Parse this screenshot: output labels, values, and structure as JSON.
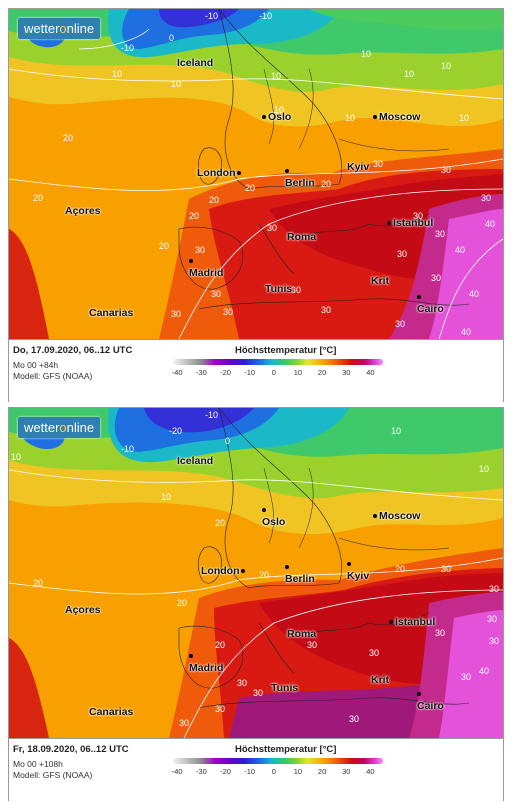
{
  "logo": {
    "pre": "wetter",
    "o": "o",
    "post": "nline"
  },
  "panels": [
    {
      "footer": {
        "date": "Do, 17.09.2020, 06..12 UTC",
        "run": "Mo 00 +84h",
        "model": "Modell: GFS (NOAA)",
        "legend_title": "Höchsttemperatur [°C]"
      },
      "cities": {
        "iceland": "Iceland",
        "oslo": "Oslo",
        "moscow": "Moscow",
        "london": "London",
        "berlin": "Berlin",
        "kyiv": "Kyiv",
        "acores": "Açores",
        "istanbul": "Istanbul",
        "roma": "Roma",
        "madrid": "Madrid",
        "tunis": "Tunis",
        "krit": "Krit",
        "cairo": "Cairo",
        "canarias": "Canarias"
      }
    },
    {
      "footer": {
        "date": "Fr, 18.09.2020, 06..12 UTC",
        "run": "Mo 00 +108h",
        "model": "Modell: GFS (NOAA)",
        "legend_title": "Höchsttemperatur [°C]"
      },
      "cities": {
        "iceland": "Iceland",
        "oslo": "Oslo",
        "moscow": "Moscow",
        "london": "London",
        "berlin": "Berlin",
        "kyiv": "Kyiv",
        "acores": "Açores",
        "istanbul": "Istanbul",
        "roma": "Roma",
        "madrid": "Madrid",
        "tunis": "Tunis",
        "krit": "Krit",
        "cairo": "Cairo",
        "canarias": "Canarias"
      }
    }
  ],
  "legend_ticks": [
    "-40",
    "-30",
    "-20",
    "-10",
    "0",
    "10",
    "20",
    "30",
    "40"
  ],
  "isotherm_labels": {
    "p1": [
      "-10",
      "-10",
      "0",
      "-10",
      "10",
      "10",
      "10",
      "10",
      "10",
      "10",
      "10",
      "10",
      "10",
      "20",
      "20",
      "20",
      "20",
      "20",
      "30",
      "20",
      "30",
      "30",
      "30",
      "30",
      "30",
      "30",
      "40",
      "30",
      "40",
      "30",
      "40",
      "40",
      "20",
      "30",
      "30",
      "30",
      "30",
      "30",
      "30"
    ],
    "p2": [
      "-10",
      "-20",
      "0",
      "-10",
      "10",
      "10",
      "10",
      "10",
      "20",
      "20",
      "20",
      "20",
      "20",
      "30",
      "30",
      "20",
      "30",
      "30",
      "30",
      "30",
      "30",
      "30",
      "40",
      "30",
      "30",
      "30",
      "30",
      "30"
    ]
  },
  "colors": {
    "cold": "#2a1fd6",
    "cool": "#2fc96a",
    "mild": "#e7e52a",
    "warm": "#f8a000",
    "hot": "#d10b12",
    "very_hot": "#e03bd3"
  }
}
